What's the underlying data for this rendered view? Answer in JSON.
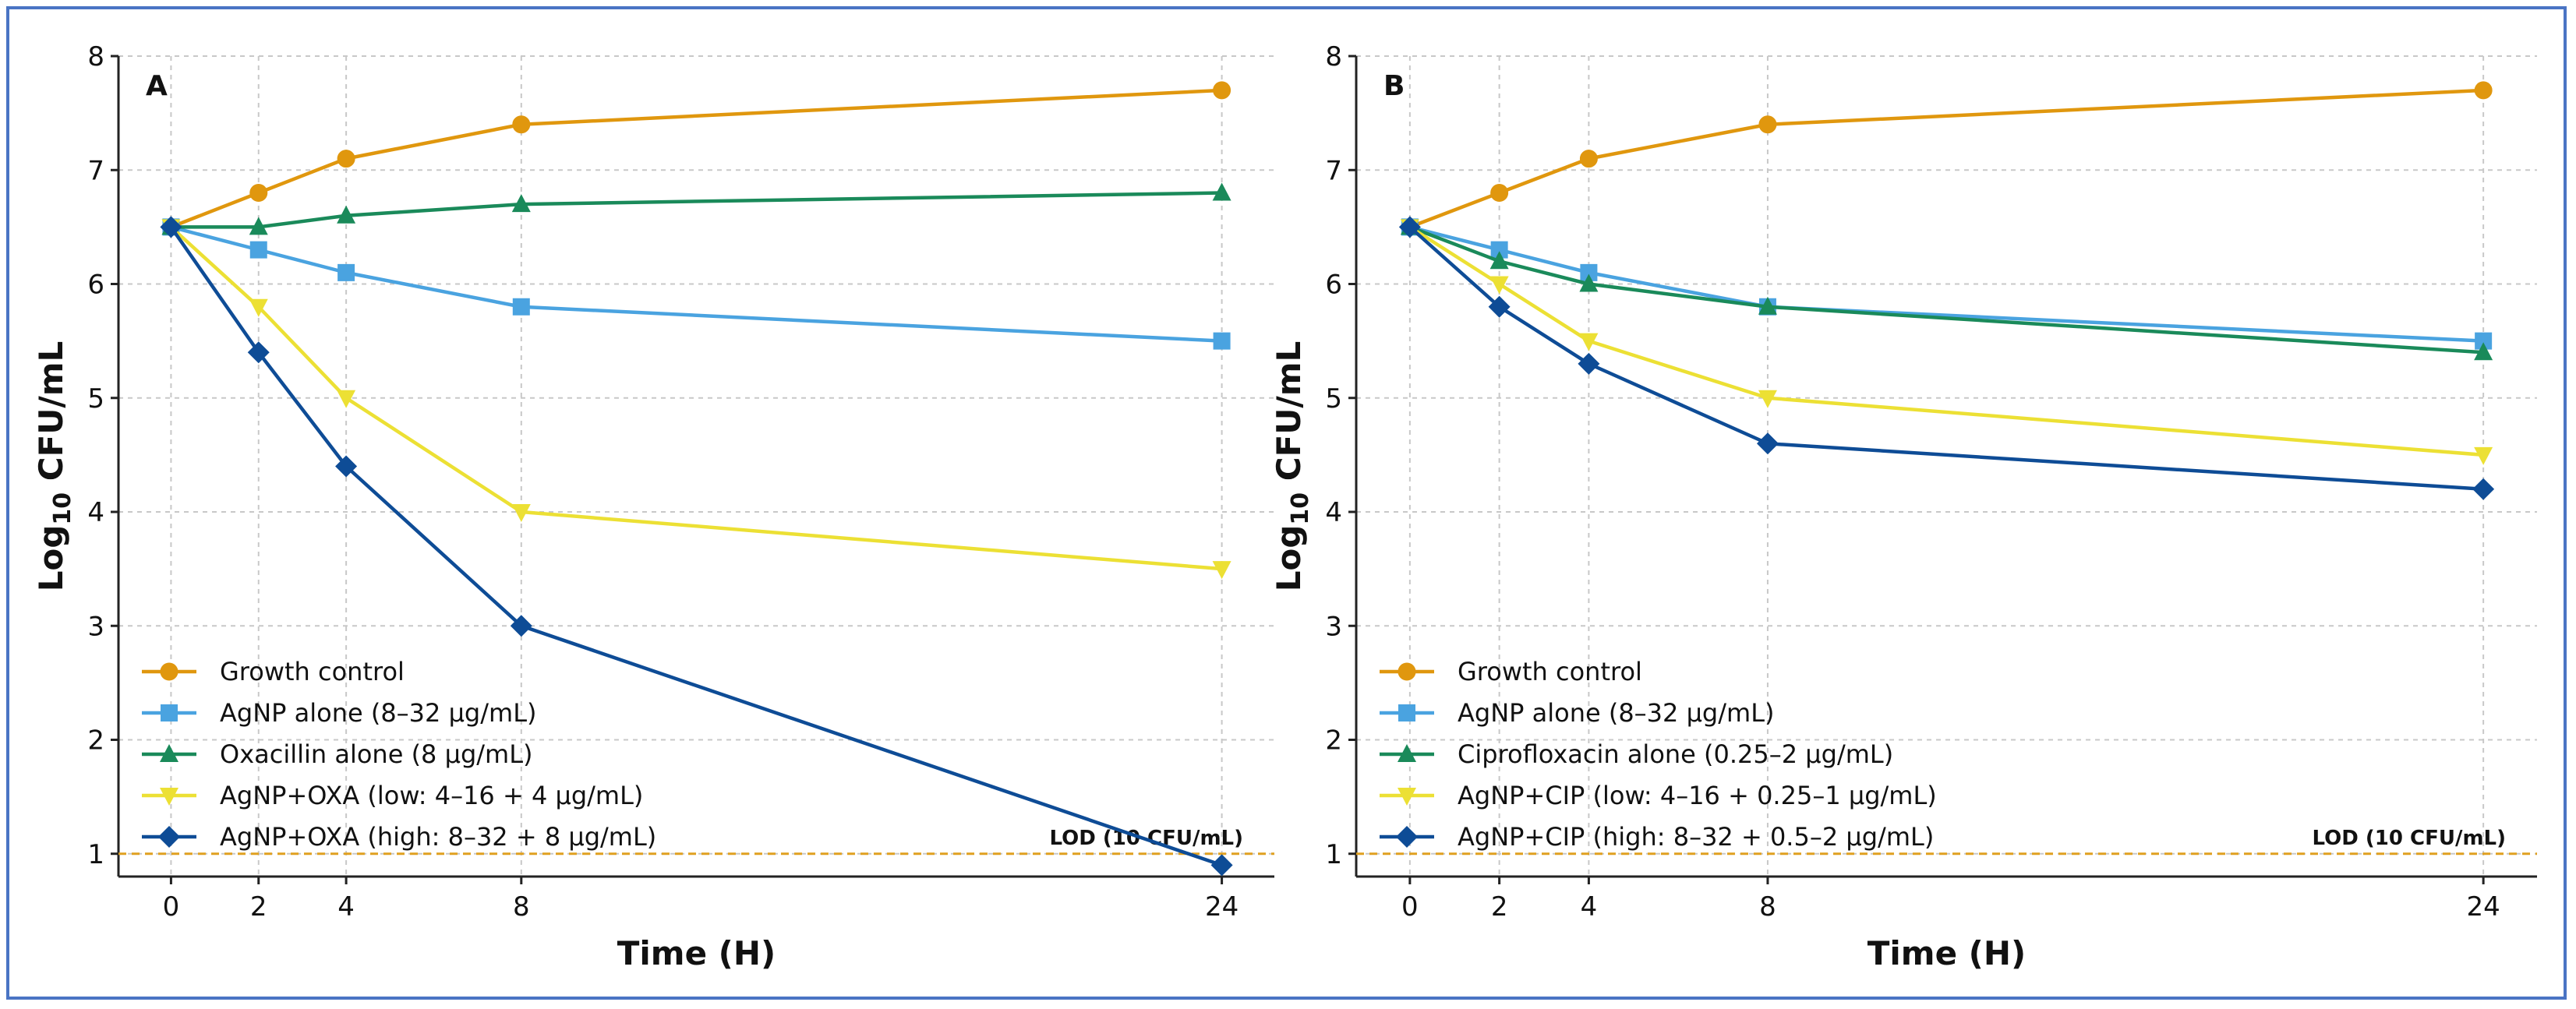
{
  "chart_data": [
    {
      "type": "line",
      "panel": "A",
      "xlabel": "Time (H)",
      "ylabel_main": "Log",
      "ylabel_sub": "10",
      "ylabel_tail": " CFU/mL",
      "x": [
        0,
        2,
        4,
        8,
        24
      ],
      "xticks": [
        0,
        2,
        4,
        8,
        24
      ],
      "yticks": [
        1,
        2,
        3,
        4,
        5,
        6,
        7,
        8
      ],
      "xlim": [
        -1.2,
        25.2
      ],
      "ylim": [
        0.8,
        8
      ],
      "lod": {
        "value": 1,
        "label": "LOD (10 CFU/mL)",
        "color": "#e0a020"
      },
      "series": [
        {
          "name": "Growth control",
          "values": [
            6.5,
            6.8,
            7.1,
            7.4,
            7.7
          ],
          "color": "#e0970e",
          "marker": "circle"
        },
        {
          "name": "AgNP alone (8–32 μg/mL)",
          "values": [
            6.5,
            6.3,
            6.1,
            5.8,
            5.5
          ],
          "color": "#4aa3e0",
          "marker": "square"
        },
        {
          "name": "Oxacillin alone (8 μg/mL)",
          "values": [
            6.5,
            6.5,
            6.6,
            6.7,
            6.8
          ],
          "color": "#1a8a5a",
          "marker": "triangle-up"
        },
        {
          "name": "AgNP+OXA (low: 4–16 + 4 μg/mL)",
          "values": [
            6.5,
            5.8,
            5.0,
            4.0,
            3.5
          ],
          "color": "#ece034",
          "marker": "triangle-down"
        },
        {
          "name": "AgNP+OXA (high: 8–32 + 8 μg/mL)",
          "values": [
            6.5,
            5.4,
            4.4,
            3.0,
            0.9
          ],
          "color": "#0e4c96",
          "marker": "diamond"
        }
      ]
    },
    {
      "type": "line",
      "panel": "B",
      "xlabel": "Time (H)",
      "ylabel_main": "Log",
      "ylabel_sub": "10",
      "ylabel_tail": " CFU/mL",
      "x": [
        0,
        2,
        4,
        8,
        24
      ],
      "xticks": [
        0,
        2,
        4,
        8,
        24
      ],
      "yticks": [
        1,
        2,
        3,
        4,
        5,
        6,
        7,
        8
      ],
      "xlim": [
        -1.2,
        25.2
      ],
      "ylim": [
        0.8,
        8
      ],
      "lod": {
        "value": 1,
        "label": "LOD (10 CFU/mL)",
        "color": "#e0a020"
      },
      "series": [
        {
          "name": "Growth control",
          "values": [
            6.5,
            6.8,
            7.1,
            7.4,
            7.7
          ],
          "color": "#e0970e",
          "marker": "circle"
        },
        {
          "name": "AgNP alone (8–32 μg/mL)",
          "values": [
            6.5,
            6.3,
            6.1,
            5.8,
            5.5
          ],
          "color": "#4aa3e0",
          "marker": "square"
        },
        {
          "name": "Ciprofloxacin alone (0.25–2 μg/mL)",
          "values": [
            6.5,
            6.2,
            6.0,
            5.8,
            5.4
          ],
          "color": "#1a8a5a",
          "marker": "triangle-up"
        },
        {
          "name": "AgNP+CIP (low: 4–16 + 0.25–1 μg/mL)",
          "values": [
            6.5,
            6.0,
            5.5,
            5.0,
            4.5
          ],
          "color": "#ece034",
          "marker": "triangle-down"
        },
        {
          "name": "AgNP+CIP (high: 8–32 + 0.5–2 μg/mL)",
          "values": [
            6.5,
            5.8,
            5.3,
            4.6,
            4.2
          ],
          "color": "#0e4c96",
          "marker": "diamond"
        }
      ]
    }
  ]
}
